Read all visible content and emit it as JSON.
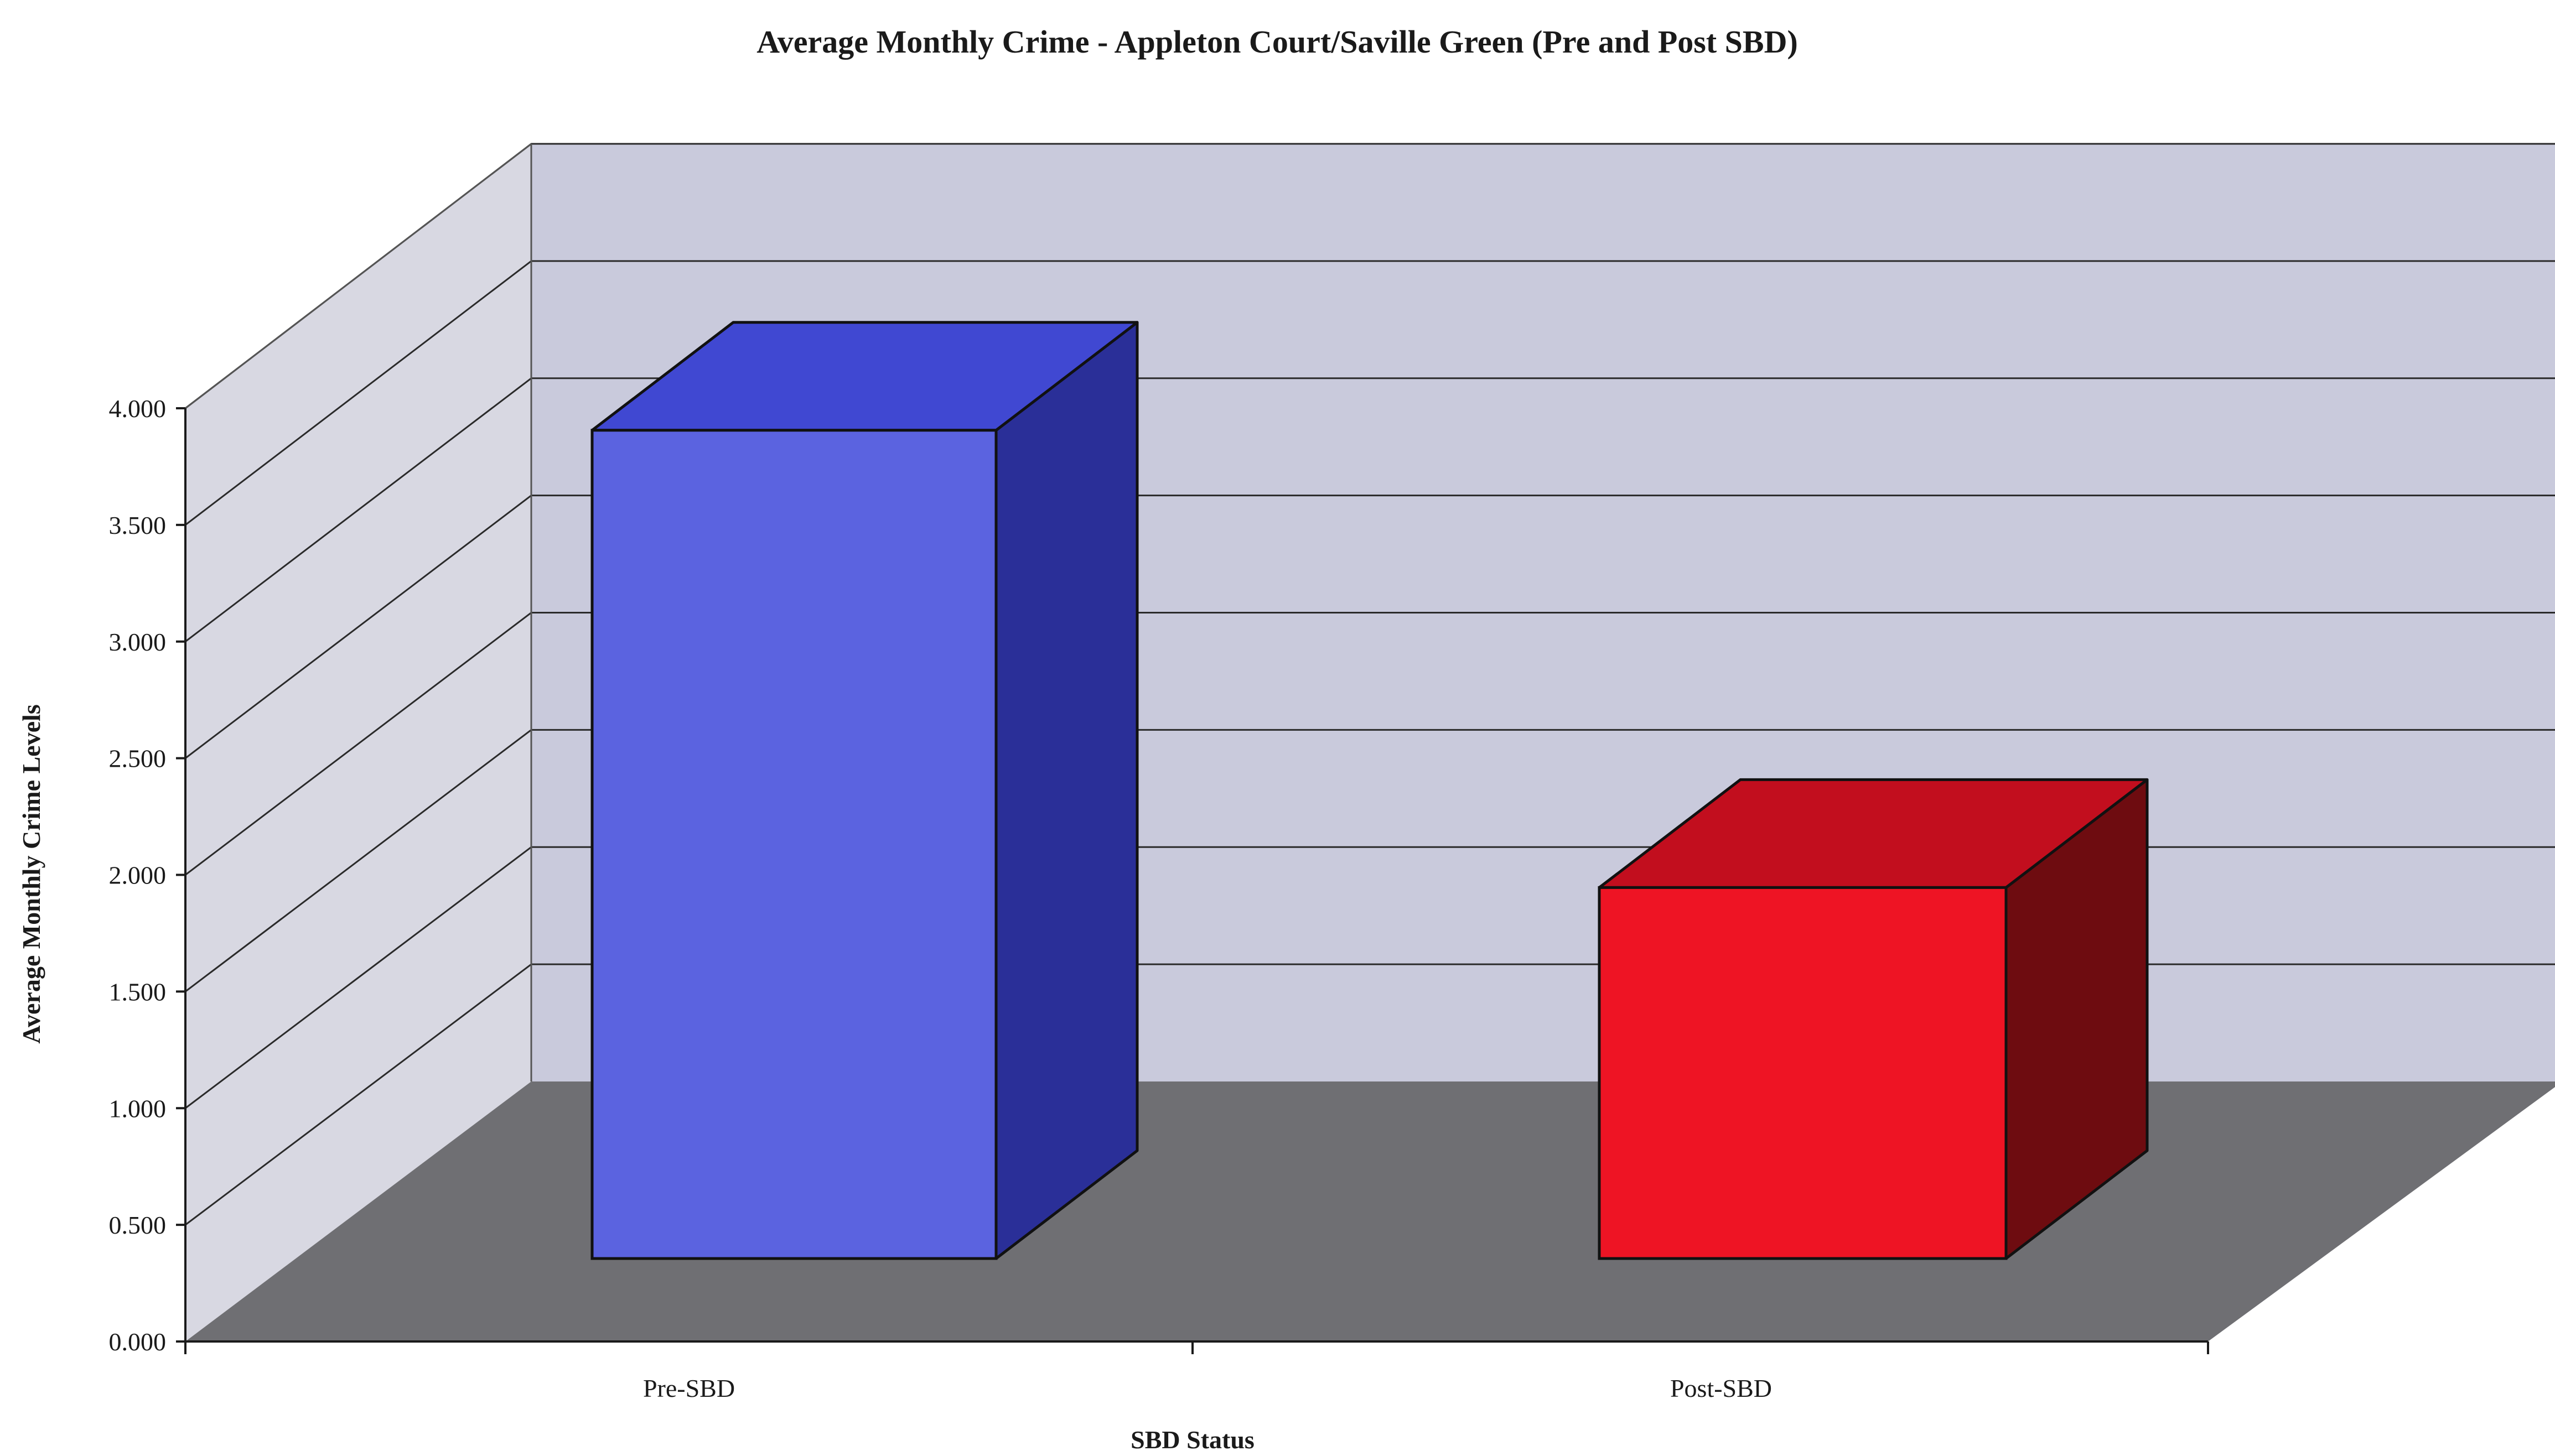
{
  "chart_data": {
    "type": "bar",
    "title": "Average Monthly Crime - Appleton Court/Saville Green (Pre and Post SBD)",
    "xlabel": "SBD Status",
    "ylabel": "Average Monthly Crime Levels",
    "categories": [
      "Pre-SBD",
      "Post-SBD"
    ],
    "values": [
      3.55,
      1.59
    ],
    "ylim": [
      0,
      4
    ],
    "yticks": [
      "0.000",
      "0.500",
      "1.000",
      "1.500",
      "2.000",
      "2.500",
      "3.000",
      "3.500",
      "4.000"
    ],
    "grid": true,
    "legend": "none",
    "colors": {
      "Pre-SBD": {
        "front": "#5b63e0",
        "side": "#2a2f98",
        "top": "#4048d2"
      },
      "Post-SBD": {
        "front": "#ee1424",
        "side": "#6e0c10",
        "top": "#c20e1e"
      },
      "back_wall": "#c9cadc",
      "side_wall": "#d8d8e2",
      "floor": "#6f6f73"
    }
  }
}
